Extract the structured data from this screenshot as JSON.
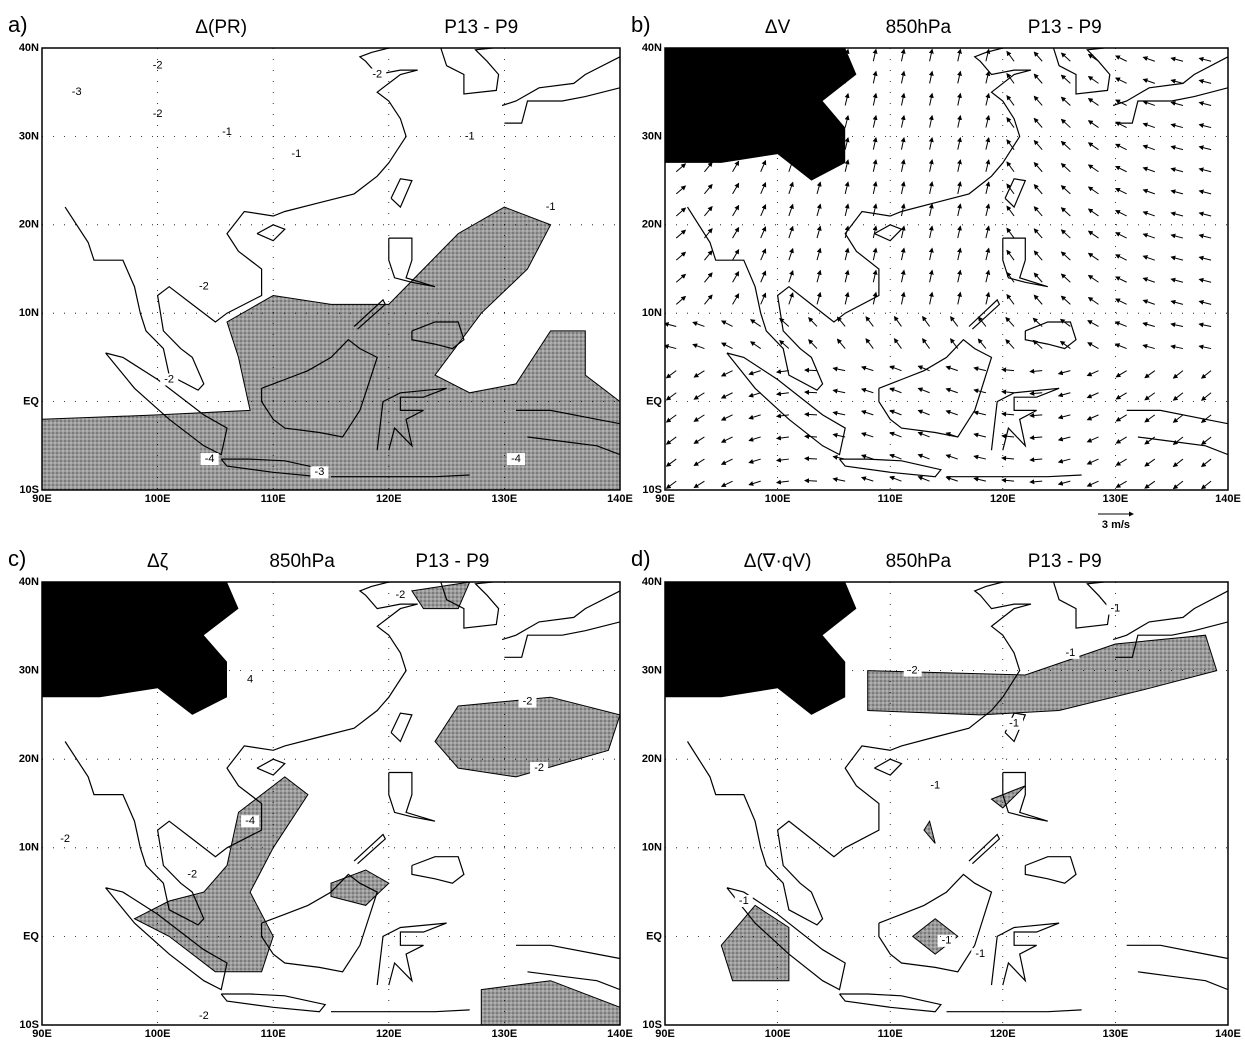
{
  "figure": {
    "lon_ticks": [
      {
        "value": 90,
        "label": "90E"
      },
      {
        "value": 100,
        "label": "100E"
      },
      {
        "value": 110,
        "label": "110E"
      },
      {
        "value": 120,
        "label": "120E"
      },
      {
        "value": 130,
        "label": "130E"
      },
      {
        "value": 140,
        "label": "140E"
      }
    ],
    "lat_ticks": [
      {
        "value": -10,
        "label": "10S"
      },
      {
        "value": 0,
        "label": "EQ"
      },
      {
        "value": 10,
        "label": "10N"
      },
      {
        "value": 20,
        "label": "20N"
      },
      {
        "value": 30,
        "label": "30N"
      },
      {
        "value": 40,
        "label": "40N"
      }
    ],
    "panels": [
      {
        "letter": "a)",
        "titles": [
          "Δ(PR)",
          "P13 - P9"
        ],
        "contour_labels": [
          -3,
          -2,
          -2,
          -2,
          -1,
          -1,
          -1,
          -1,
          -2,
          -2,
          -4,
          -3,
          -4
        ]
      },
      {
        "letter": "b)",
        "titles": [
          "ΔV",
          "850hPa",
          "P13 - P9"
        ],
        "vector_scale": "3 m/s"
      },
      {
        "letter": "c)",
        "titles": [
          "Δζ",
          "850hPa",
          "P13 - P9"
        ],
        "contour_labels": [
          -2,
          -4,
          -2,
          -2,
          -2,
          -2,
          4,
          -2
        ]
      },
      {
        "letter": "d)",
        "titles": [
          "Δ(∇·qV)",
          "850hPa",
          "P13 - P9"
        ],
        "contour_labels": [
          -1,
          -2,
          -1,
          -1,
          -1,
          -1,
          -1,
          -1
        ]
      }
    ]
  }
}
